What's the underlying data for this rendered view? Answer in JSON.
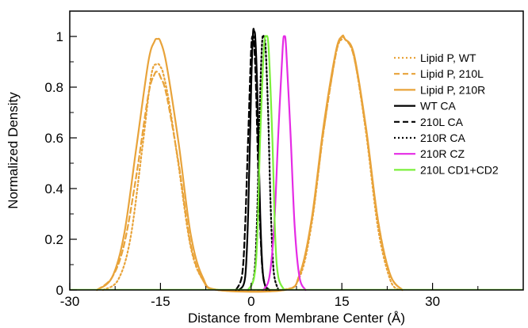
{
  "chart_data": {
    "type": "line",
    "title": "",
    "xlabel": "Distance from Membrane Center (Å)",
    "ylabel": "Normalized Density",
    "xlim": [
      -30,
      45
    ],
    "ylim": [
      0,
      1.1
    ],
    "grid": false,
    "legend_position": "top-right",
    "x_ticks": [
      -30,
      -15,
      0,
      15,
      30
    ],
    "x_tick_labels": [
      "-30",
      "-15",
      "0",
      "15",
      "30"
    ],
    "y_ticks": [
      0,
      0.2,
      0.4,
      0.6,
      0.8,
      1
    ],
    "y_tick_labels": [
      "0",
      "0.2",
      "0.4",
      "0.6",
      "0.8",
      "1"
    ],
    "series": [
      {
        "name": "Lipid P, WT",
        "color": "#E8A33A",
        "dash": "dotted",
        "x": [
          -24.5,
          -22,
          -20,
          -18,
          -16.5,
          -15.5,
          -15,
          -14.5,
          -13.5,
          -12,
          -10,
          -8,
          -5.5,
          5,
          8,
          10,
          12,
          14,
          15,
          15.5,
          17,
          19,
          21,
          23,
          24.5
        ],
        "y": [
          0,
          0.04,
          0.2,
          0.56,
          0.85,
          0.89,
          0.88,
          0.85,
          0.73,
          0.49,
          0.17,
          0.04,
          0,
          0,
          0.05,
          0.26,
          0.63,
          0.93,
          0.99,
          0.99,
          0.92,
          0.62,
          0.24,
          0.04,
          0
        ]
      },
      {
        "name": "Lipid P, 210L",
        "color": "#E8A33A",
        "dash": "dashed",
        "x": [
          -25.5,
          -23,
          -21,
          -19,
          -17,
          -16,
          -15.5,
          -15,
          -14,
          -12,
          -10,
          -8,
          -5.5,
          5.5,
          8,
          10,
          12,
          14,
          15,
          15.5,
          17,
          19,
          21,
          23,
          25
        ],
        "y": [
          0,
          0.05,
          0.18,
          0.45,
          0.77,
          0.85,
          0.86,
          0.84,
          0.77,
          0.5,
          0.18,
          0.04,
          0,
          0,
          0.06,
          0.27,
          0.63,
          0.93,
          1.0,
          0.99,
          0.92,
          0.63,
          0.27,
          0.06,
          0
        ]
      },
      {
        "name": "Lipid P, 210R",
        "color": "#E8A33A",
        "dash": "solid",
        "x": [
          -25.5,
          -23,
          -21,
          -19,
          -17,
          -16,
          -15.5,
          -15,
          -14,
          -12,
          -10,
          -8,
          -5.5,
          5.5,
          8,
          10,
          12,
          14,
          15,
          15.5,
          17,
          19,
          21,
          23,
          25
        ],
        "y": [
          0,
          0.05,
          0.22,
          0.56,
          0.9,
          0.98,
          0.99,
          0.98,
          0.89,
          0.58,
          0.22,
          0.05,
          0,
          0,
          0.06,
          0.28,
          0.65,
          0.94,
          1.0,
          0.99,
          0.93,
          0.64,
          0.27,
          0.06,
          0
        ]
      },
      {
        "name": "WT CA",
        "color": "#000000",
        "dash": "solid",
        "x": [
          -2,
          -1,
          -0.5,
          0,
          0.3,
          0.5,
          0.7,
          1,
          1.5,
          2,
          3
        ],
        "y": [
          0,
          0.05,
          0.3,
          0.8,
          1.01,
          1.02,
          0.99,
          0.8,
          0.3,
          0.05,
          0
        ]
      },
      {
        "name": "210L CA",
        "color": "#000000",
        "dash": "dashed",
        "x": [
          -2.5,
          -1.5,
          -1,
          -0.5,
          0,
          0.3,
          0.5,
          0.8,
          1.2,
          1.8,
          2.5
        ],
        "y": [
          0,
          0.06,
          0.25,
          0.6,
          0.95,
          1.0,
          0.97,
          0.8,
          0.45,
          0.1,
          0
        ]
      },
      {
        "name": "210R CA",
        "color": "#000000",
        "dash": "dotted",
        "x": [
          -0.5,
          0.5,
          1,
          1.4,
          1.8,
          2.1,
          2.4,
          2.8,
          3.2,
          3.7,
          4.5
        ],
        "y": [
          0,
          0.06,
          0.3,
          0.7,
          0.97,
          1.0,
          0.95,
          0.7,
          0.35,
          0.08,
          0
        ]
      },
      {
        "name": "210R CZ",
        "color": "#E52BE5",
        "dash": "solid",
        "x": [
          2,
          3,
          3.8,
          4.5,
          5.2,
          5.5,
          5.8,
          6.5,
          7.2,
          8,
          9
        ],
        "y": [
          0,
          0.05,
          0.25,
          0.62,
          0.95,
          1.0,
          0.95,
          0.62,
          0.25,
          0.05,
          0
        ]
      },
      {
        "name": "210L CD1+CD2",
        "color": "#7CF03C",
        "dash": "solid",
        "x": [
          -0.5,
          0.5,
          1,
          1.5,
          2.1,
          2.5,
          2.9,
          3.5,
          4,
          4.5,
          5.5
        ],
        "y": [
          0,
          0.05,
          0.2,
          0.6,
          0.95,
          1.0,
          0.95,
          0.6,
          0.2,
          0.05,
          0
        ]
      }
    ]
  }
}
